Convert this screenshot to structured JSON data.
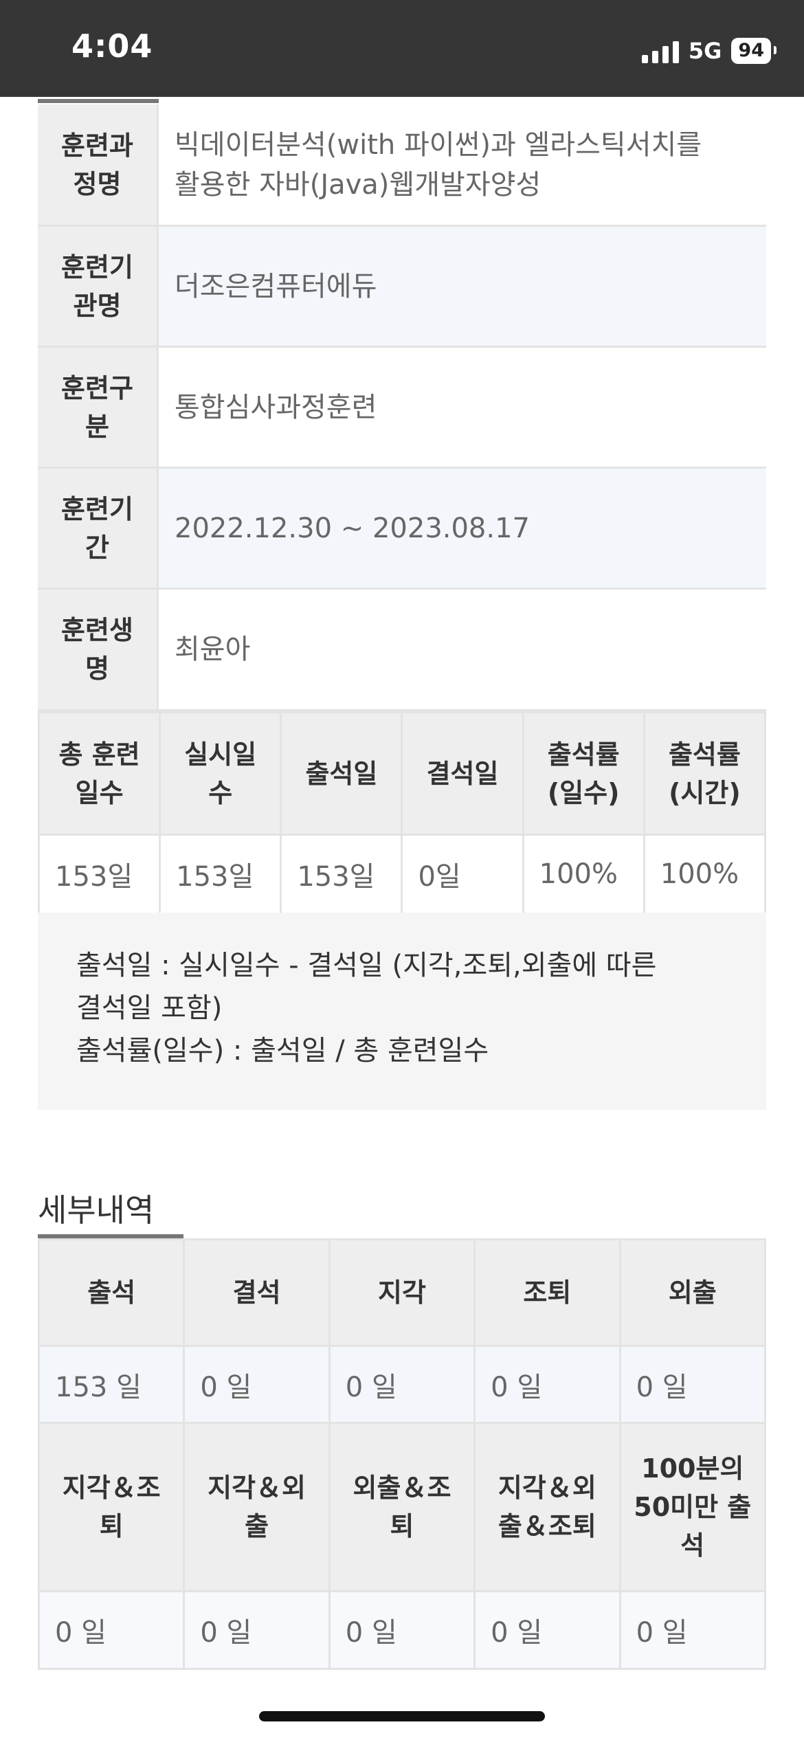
{
  "status_bar": {
    "time": "4:04",
    "network": "5G",
    "battery": "94"
  },
  "info": [
    {
      "label": "훈련과정명",
      "label_lines": [
        "훈련과",
        "정명"
      ],
      "value_lines": [
        "빅데이터분석(with 파이썬)과 엘라스틱서치를",
        "활용한 자바(Java)웹개발자양성"
      ]
    },
    {
      "label": "훈련기관명",
      "label_lines": [
        "훈련기",
        "관명"
      ],
      "value_lines": [
        "더조은컴퓨터에듀"
      ]
    },
    {
      "label": "훈련구분",
      "label_lines": [
        "훈련구",
        "분"
      ],
      "value_lines": [
        "통합심사과정훈련"
      ]
    },
    {
      "label": "훈련기간",
      "label_lines": [
        "훈련기",
        "간"
      ],
      "value_lines": [
        "2022.12.30 ~ 2023.08.17"
      ]
    },
    {
      "label": "훈련생명",
      "label_lines": [
        "훈련생",
        "명"
      ],
      "value_lines": [
        "최윤아"
      ]
    }
  ],
  "stats": {
    "headers": [
      [
        "총 훈련",
        "일수"
      ],
      [
        "실시일",
        "수"
      ],
      [
        "출석일"
      ],
      [
        "결석일"
      ],
      [
        "출석률",
        "(일수)"
      ],
      [
        "출석률",
        "(시간)"
      ]
    ],
    "values": [
      "153일",
      "153일",
      "153일",
      "0일",
      "100%",
      "100%"
    ]
  },
  "note": {
    "lines": [
      "출석일 : 실시일수 - 결석일 (지각,조퇴,외출에 따른",
      "결석일 포함)",
      "출석률(일수) : 출석일 / 총 훈련일수"
    ]
  },
  "detail": {
    "title": "세부내역",
    "row1_headers": [
      [
        "출석"
      ],
      [
        "결석"
      ],
      [
        "지각"
      ],
      [
        "조퇴"
      ],
      [
        "외출"
      ]
    ],
    "row1_values": [
      "153 일",
      "0 일",
      "0 일",
      "0 일",
      "0 일"
    ],
    "row2_headers": [
      [
        "지각＆조",
        "퇴"
      ],
      [
        "지각＆외",
        "출"
      ],
      [
        "외출＆조",
        "퇴"
      ],
      [
        "지각＆외",
        "출＆조퇴"
      ],
      [
        "100분의",
        "50미만 출",
        "석"
      ]
    ],
    "row2_values": [
      "0 일",
      "0 일",
      "0 일",
      "0 일",
      "0 일"
    ]
  }
}
